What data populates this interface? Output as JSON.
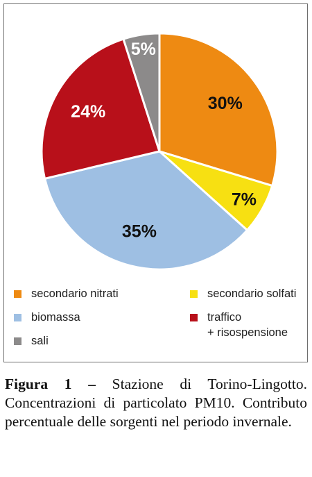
{
  "chart_data": {
    "type": "pie",
    "start_angle_deg": 0,
    "direction": "clockwise",
    "slices": [
      {
        "name": "secondario nitrati",
        "label": "30%",
        "value": 30,
        "color": "#EE8A12"
      },
      {
        "name": "secondario solfati",
        "label": "7%",
        "value": 7,
        "color": "#F7E012"
      },
      {
        "name": "biomassa",
        "label": "35%",
        "value": 35,
        "color": "#9EBFE3"
      },
      {
        "name": "traffico\n+ risospensione",
        "label": "24%",
        "value": 24,
        "color": "#B8101A"
      },
      {
        "name": "sali",
        "label": "5%",
        "value": 5,
        "color": "#8C8A8A"
      }
    ],
    "label_colors": [
      "#111111",
      "#111111",
      "#111111",
      "#ffffff",
      "#ffffff"
    ],
    "legend_placement": "bottom"
  },
  "caption": {
    "figure_label": "Figura 1 –",
    "text": "Stazione di Torino-Lingotto. Concentrazioni di particolato PM10. Contributo percentuale delle sorgenti nel periodo invernale."
  }
}
